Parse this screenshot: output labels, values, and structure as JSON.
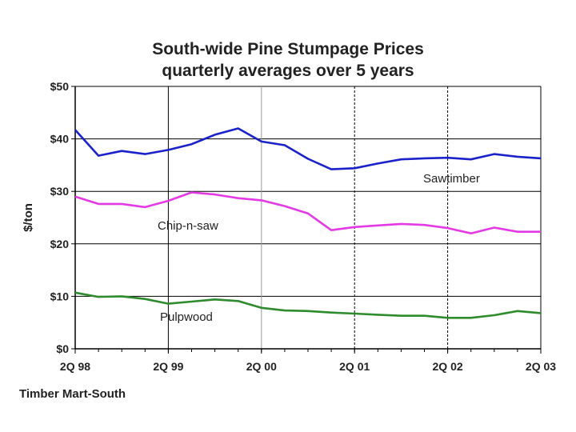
{
  "chart_data": {
    "type": "line",
    "title": "South-wide Pine Stumpage Prices",
    "subtitle": "quarterly averages over 5 years",
    "ylabel": "$/ton",
    "xlabel": "",
    "ylim": [
      0,
      50
    ],
    "y_ticks": [
      "$0",
      "$10",
      "$20",
      "$30",
      "$40",
      "$50"
    ],
    "x_tick_labels": [
      "2Q 98",
      "2Q 99",
      "2Q 00",
      "2Q 01",
      "2Q 02",
      "2Q 03"
    ],
    "x": [
      "2Q 98",
      "3Q 98",
      "4Q 98",
      "1Q 99",
      "2Q 99",
      "3Q 99",
      "4Q 99",
      "1Q 00",
      "2Q 00",
      "3Q 00",
      "4Q 00",
      "1Q 01",
      "2Q 01",
      "3Q 01",
      "4Q 01",
      "1Q 02",
      "2Q 02",
      "3Q 02",
      "4Q 02",
      "1Q 03",
      "2Q 03"
    ],
    "grid": true,
    "series": [
      {
        "name": "Sawtimber",
        "color": "#1a22c8",
        "values": [
          41.7,
          36.8,
          37.7,
          37.1,
          37.9,
          39.0,
          40.8,
          42.0,
          39.5,
          38.8,
          36.2,
          34.2,
          34.4,
          35.3,
          36.1,
          36.3,
          36.4,
          36.1,
          37.1,
          36.6,
          36.3
        ]
      },
      {
        "name": "Chip-n-saw",
        "color": "#e33be3",
        "values": [
          29.0,
          27.6,
          27.6,
          27.0,
          28.2,
          29.8,
          29.4,
          28.7,
          28.3,
          27.2,
          25.8,
          22.6,
          23.2,
          23.5,
          23.8,
          23.6,
          23.0,
          22.0,
          23.1,
          22.3,
          22.3
        ]
      },
      {
        "name": "Pulpwood",
        "color": "#2e8b2e",
        "values": [
          10.7,
          9.9,
          10.0,
          9.5,
          8.6,
          9.0,
          9.4,
          9.1,
          7.8,
          7.3,
          7.2,
          6.9,
          6.7,
          6.5,
          6.3,
          6.3,
          5.9,
          5.9,
          6.4,
          7.2,
          6.8
        ]
      }
    ],
    "annotations": [
      "Sawtimber",
      "Chip-n-saw",
      "Pulpwood"
    ]
  },
  "source": "Timber Mart-South"
}
